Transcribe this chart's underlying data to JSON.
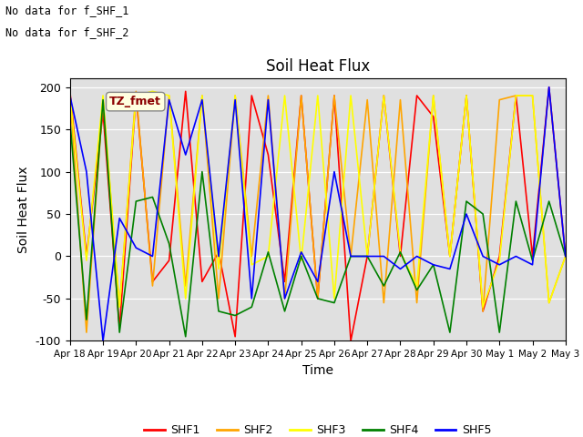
{
  "title": "Soil Heat Flux",
  "xlabel": "Time",
  "ylabel": "Soil Heat Flux",
  "text_lines": [
    "No data for f_SHF_1",
    "No data for f_SHF_2"
  ],
  "legend_label": "TZ_fmet",
  "series_names": [
    "SHF1",
    "SHF2",
    "SHF3",
    "SHF4",
    "SHF5"
  ],
  "series_colors": [
    "red",
    "orange",
    "yellow",
    "green",
    "blue"
  ],
  "ylim": [
    -100,
    210
  ],
  "yticks": [
    -100,
    -50,
    0,
    50,
    100,
    150,
    200
  ],
  "xlim_start": 0,
  "xlim_end": 15,
  "xtick_labels": [
    "Apr 18",
    "Apr 19",
    "Apr 20",
    "Apr 21",
    "Apr 22",
    "Apr 23",
    "Apr 24",
    "Apr 25",
    "Apr 26",
    "Apr 27",
    "Apr 28",
    "Apr 29",
    "Apr 30",
    "May 1",
    "May 2",
    "May 3"
  ],
  "background_color": "#e0e0e0",
  "SHF1_x": [
    0,
    0.5,
    1,
    1.5,
    2,
    2.5,
    3,
    3.5,
    4,
    4.5,
    5,
    5.5,
    6,
    6.5,
    7,
    7.5,
    8,
    8.5,
    9,
    9.5,
    10,
    10.5,
    11,
    11.5,
    12,
    12.5,
    13,
    13.5,
    14,
    14.5,
    15
  ],
  "SHF1_y": [
    195,
    0,
    170,
    -85,
    190,
    -30,
    -5,
    195,
    -30,
    5,
    -95,
    190,
    120,
    -30,
    190,
    -50,
    190,
    -100,
    0,
    190,
    0,
    190,
    165,
    0,
    190,
    -65,
    0,
    190,
    0,
    200,
    0
  ],
  "SHF2_x": [
    0,
    0.5,
    1,
    1.5,
    2,
    2.5,
    3,
    3.5,
    4,
    4.5,
    5,
    5.5,
    6,
    6.5,
    7,
    7.5,
    8,
    8.5,
    9,
    9.5,
    10,
    10.5,
    11,
    11.5,
    12,
    12.5,
    13,
    13.5,
    14,
    14.5,
    15
  ],
  "SHF2_y": [
    190,
    -90,
    185,
    -60,
    195,
    -35,
    190,
    -35,
    190,
    -50,
    190,
    0,
    190,
    -50,
    190,
    -50,
    190,
    0,
    185,
    -55,
    185,
    -55,
    190,
    0,
    190,
    -65,
    185,
    190,
    190,
    -55,
    0
  ],
  "SHF3_x": [
    0,
    0.5,
    1,
    1.5,
    2,
    2.5,
    3,
    3.5,
    4,
    4.5,
    5,
    5.5,
    6,
    6.5,
    7,
    7.5,
    8,
    8.5,
    9,
    9.5,
    10,
    10.5,
    11,
    11.5,
    12,
    12.5,
    13,
    13.5,
    14,
    14.5,
    15
  ],
  "SHF3_y": [
    190,
    -5,
    190,
    -60,
    190,
    195,
    190,
    -50,
    190,
    -15,
    190,
    -10,
    0,
    190,
    -5,
    190,
    -50,
    190,
    0,
    190,
    5,
    -35,
    190,
    0,
    190,
    -60,
    -5,
    190,
    190,
    -55,
    0
  ],
  "SHF4_x": [
    0,
    0.5,
    1,
    1.5,
    2,
    2.5,
    3,
    3.5,
    4,
    4.5,
    5,
    5.5,
    6,
    6.5,
    7,
    7.5,
    8,
    8.5,
    9,
    9.5,
    10,
    10.5,
    11,
    11.5,
    12,
    12.5,
    13,
    13.5,
    14,
    14.5,
    15
  ],
  "SHF4_y": [
    160,
    -75,
    185,
    -90,
    65,
    70,
    15,
    -95,
    100,
    -65,
    -70,
    -60,
    5,
    -65,
    0,
    -50,
    -55,
    0,
    0,
    -35,
    5,
    -40,
    -10,
    -90,
    65,
    50,
    -90,
    65,
    -5,
    65,
    0
  ],
  "SHF5_x": [
    0,
    0.5,
    1,
    1.5,
    2,
    2.5,
    3,
    3.5,
    4,
    4.5,
    5,
    5.5,
    6,
    6.5,
    7,
    7.5,
    8,
    8.5,
    9,
    9.5,
    10,
    10.5,
    11,
    11.5,
    12,
    12.5,
    13,
    13.5,
    14,
    14.5,
    15
  ],
  "SHF5_y": [
    190,
    100,
    -100,
    45,
    10,
    0,
    185,
    120,
    185,
    0,
    185,
    -50,
    185,
    -50,
    5,
    -30,
    100,
    0,
    0,
    0,
    -15,
    0,
    -10,
    -15,
    50,
    0,
    -10,
    0,
    -10,
    200,
    0
  ],
  "figsize": [
    6.4,
    4.8
  ],
  "dpi": 100
}
